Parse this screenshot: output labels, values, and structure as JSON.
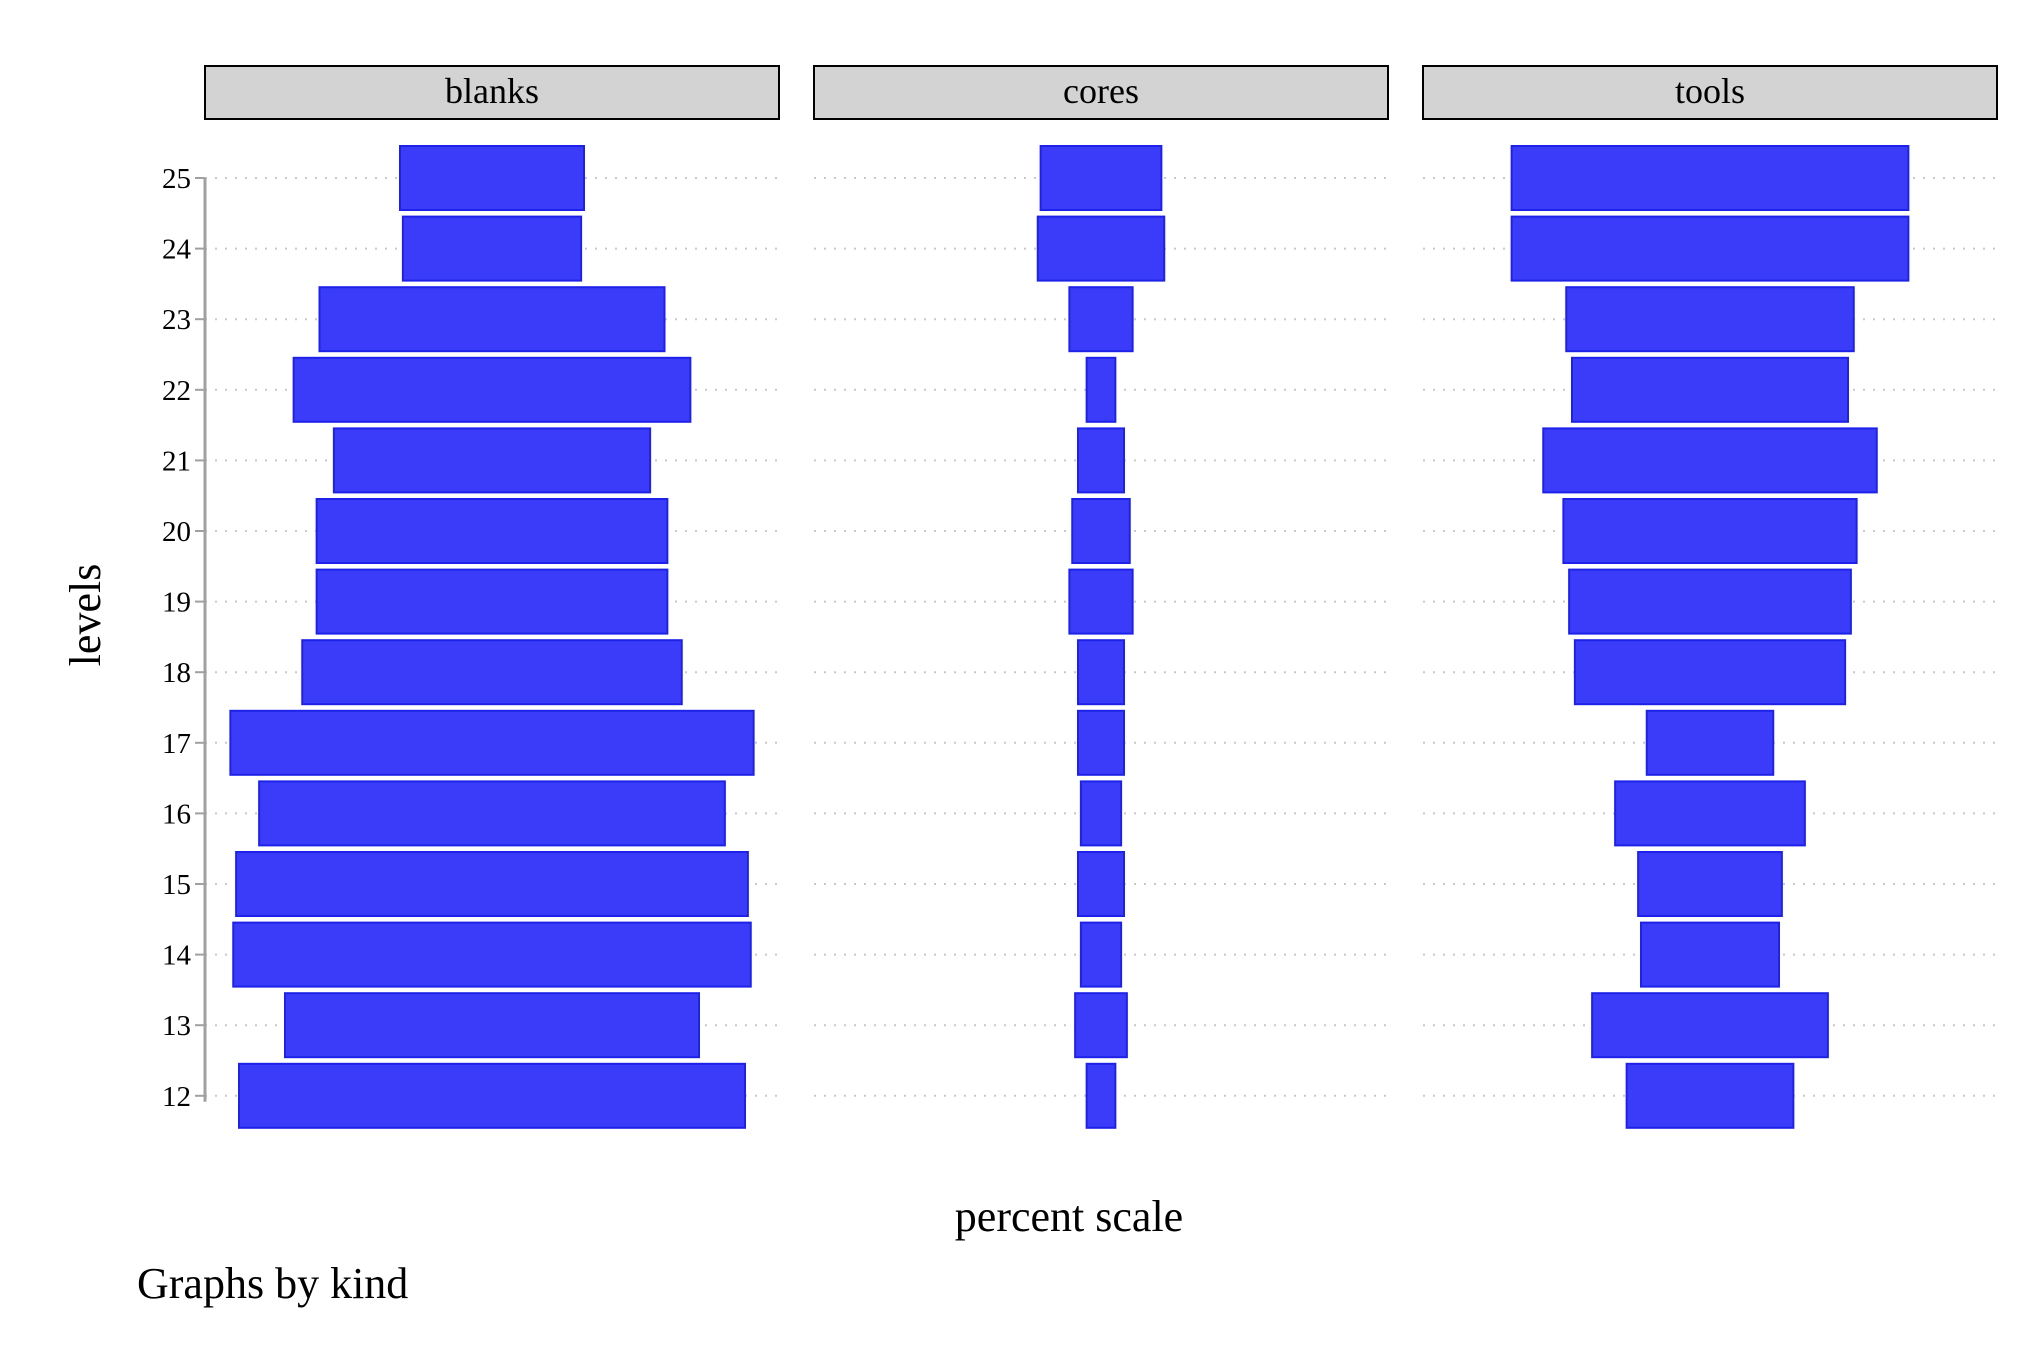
{
  "chart_data": {
    "type": "bar",
    "subtype": "centered-horizontal-bar (spine/percent scale), faceted",
    "facet_variable": "kind",
    "panels": [
      "blanks",
      "cores",
      "tools"
    ],
    "levels": [
      25,
      24,
      23,
      22,
      21,
      20,
      19,
      18,
      17,
      16,
      15,
      14,
      13,
      12
    ],
    "series": [
      {
        "name": "blanks",
        "values": [
          32,
          31,
          60,
          69,
          55,
          61,
          61,
          66,
          91,
          81,
          89,
          90,
          72,
          88
        ]
      },
      {
        "name": "cores",
        "values": [
          21,
          22,
          11,
          5,
          8,
          10,
          11,
          8,
          8,
          7,
          8,
          7,
          9,
          5
        ]
      },
      {
        "name": "tools",
        "values": [
          69,
          69,
          50,
          48,
          58,
          51,
          49,
          47,
          22,
          33,
          25,
          24,
          41,
          29
        ]
      }
    ],
    "xlabel": "percent scale",
    "ylabel": "levels",
    "note": "Graphs by kind",
    "grid": true,
    "bar_color": "#3a3cf9",
    "bar_border_color": "#1e22e8"
  }
}
